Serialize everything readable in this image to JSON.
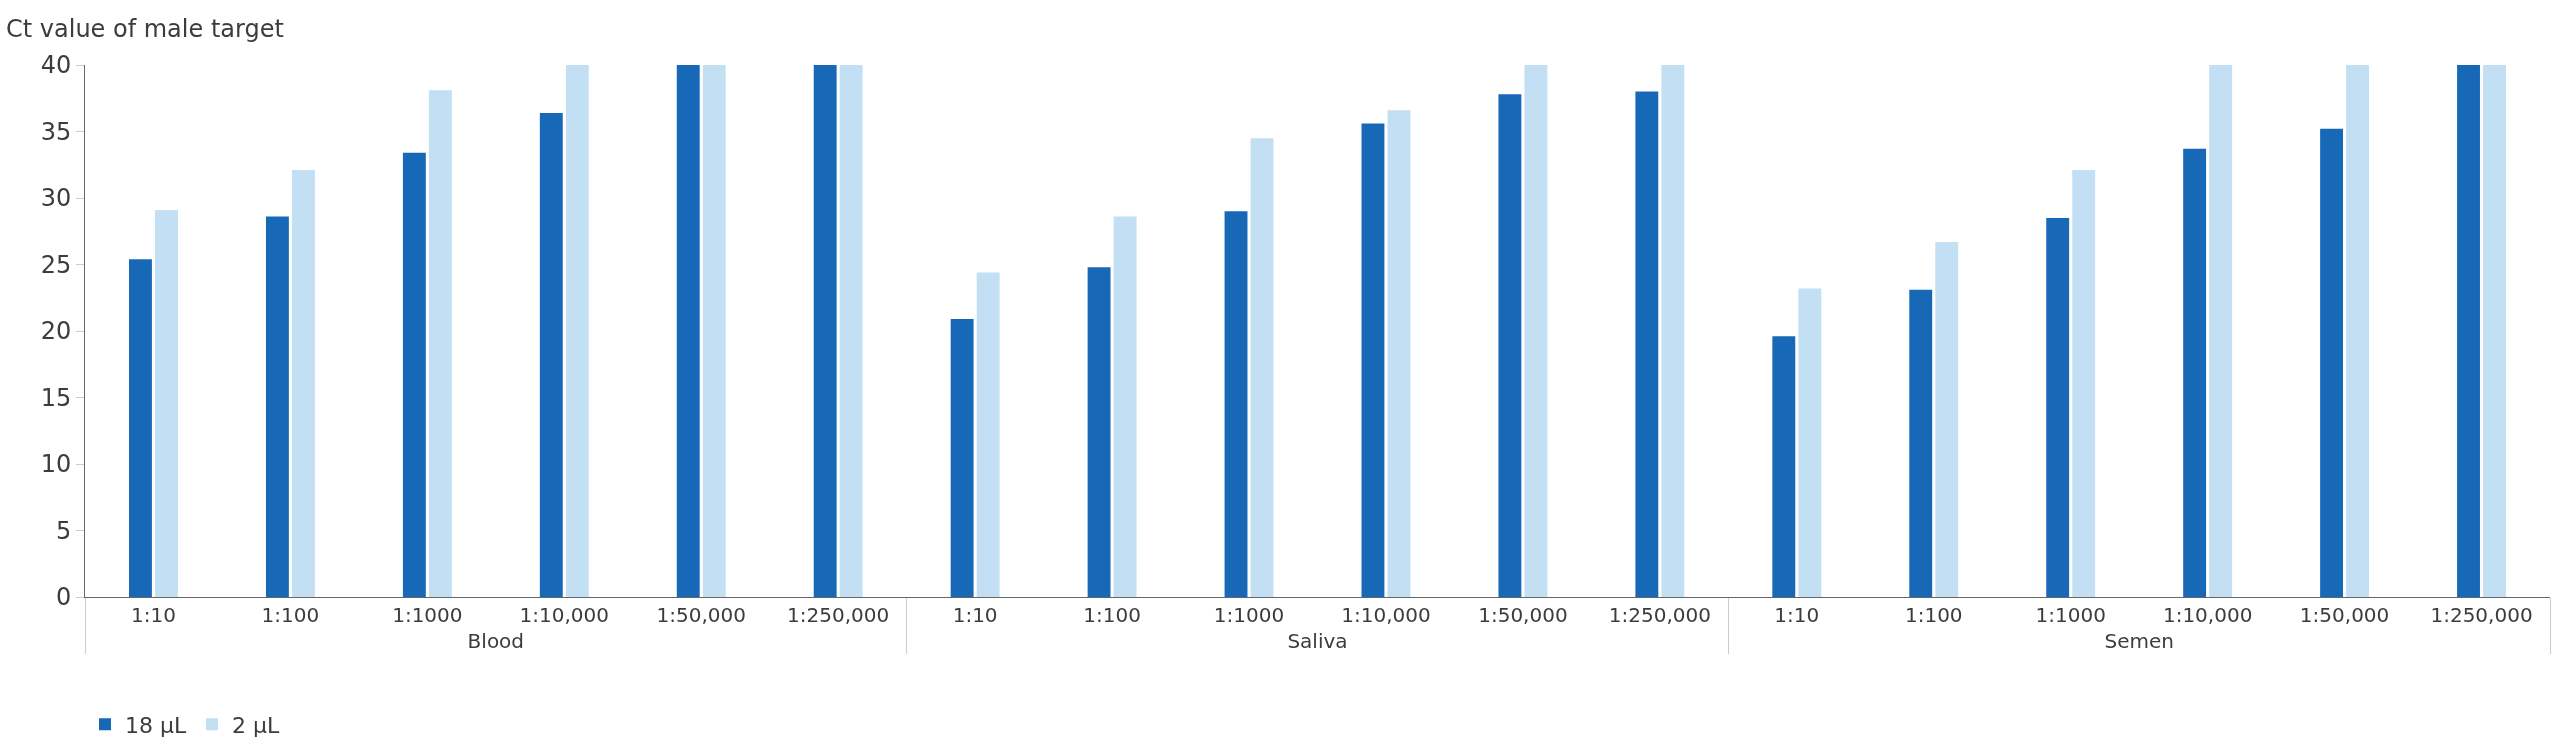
{
  "chart_data": {
    "type": "bar",
    "ylabel": "Ct value of male target",
    "categories": [
      "1:10",
      "1:100",
      "1:1000",
      "1:10,000",
      "1:50,000",
      "1:250,000",
      "1:10",
      "1:100",
      "1:1000",
      "1:10,000",
      "1:50,000",
      "1:250,000",
      "1:10",
      "1:100",
      "1:1000",
      "1:10,000",
      "1:50,000",
      "1:250,000"
    ],
    "annotations": [
      "Blood",
      "Saliva",
      "Semen"
    ],
    "series": [
      {
        "name": "18 µL",
        "color": "#1868b8",
        "values": [
          25.4,
          28.6,
          33.4,
          36.4,
          40,
          40,
          20.9,
          24.8,
          29.0,
          35.6,
          37.8,
          38.0,
          19.6,
          23.1,
          28.5,
          33.7,
          35.2,
          40
        ]
      },
      {
        "name": "2 µL",
        "color": "#c2dff3",
        "values": [
          29.1,
          32.1,
          38.1,
          40,
          40,
          40,
          24.4,
          28.6,
          34.5,
          36.6,
          40,
          40,
          23.2,
          26.7,
          32.1,
          40,
          40,
          40
        ]
      }
    ],
    "ylim": [
      0,
      40
    ],
    "yticks": [
      0,
      5,
      10,
      15,
      20,
      25,
      30,
      35,
      40
    ],
    "legend": "bottom left"
  }
}
